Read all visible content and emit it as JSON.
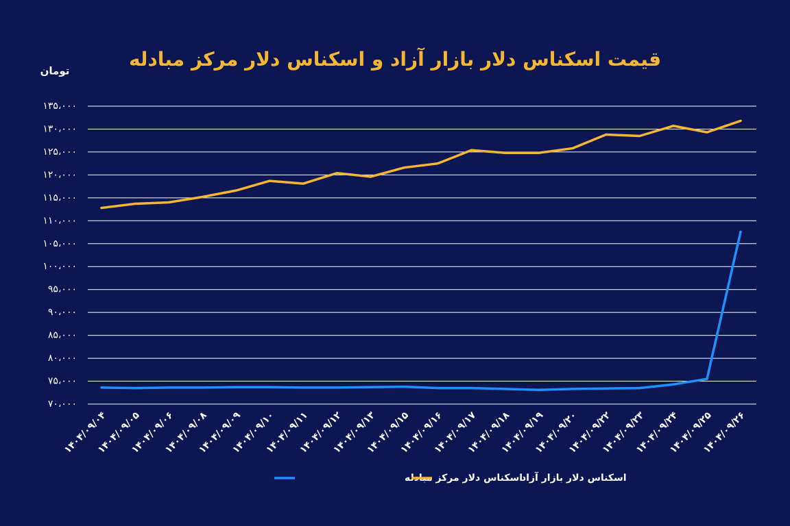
{
  "chart_data": {
    "type": "line",
    "title": "قیمت اسکناس دلار بازار آزاد و اسکناس دلار مرکز مبادله",
    "y_label": "تومان",
    "categories": [
      "۱۴۰۴/۰۹/۰۴",
      "۱۴۰۴/۰۹/۰۵",
      "۱۴۰۴/۰۹/۰۶",
      "۱۴۰۴/۰۹/۰۸",
      "۱۴۰۴/۰۹/۰۹",
      "۱۴۰۴/۰۹/۱۰",
      "۱۴۰۴/۰۹/۱۱",
      "۱۴۰۴/۰۹/۱۲",
      "۱۴۰۴/۰۹/۱۳",
      "۱۴۰۴/۰۹/۱۵",
      "۱۴۰۴/۰۹/۱۶",
      "۱۴۰۴/۰۹/۱۷",
      "۱۴۰۴/۰۹/۱۸",
      "۱۴۰۴/۰۹/۱۹",
      "۱۴۰۴/۰۹/۲۰",
      "۱۴۰۴/۰۹/۲۲",
      "۱۴۰۴/۰۹/۲۳",
      "۱۴۰۴/۰۹/۲۴",
      "۱۴۰۴/۰۹/۲۵",
      "۱۴۰۴/۰۹/۲۶"
    ],
    "series": [
      {
        "name": "اسکناس دلار مرکز مبادله",
        "color": "#1e90ff",
        "values": [
          73600,
          73500,
          73600,
          73600,
          73700,
          73700,
          73600,
          73600,
          73700,
          73800,
          73500,
          73500,
          73300,
          73100,
          73300,
          73400,
          73500,
          74300,
          75500,
          107600
        ]
      },
      {
        "name": "اسکناس دلار بازار آزاد",
        "color": "#f5b731",
        "values": [
          112800,
          113700,
          114000,
          115200,
          116600,
          118700,
          118100,
          120400,
          119600,
          121600,
          122500,
          125400,
          124800,
          124800,
          125800,
          128800,
          128500,
          130700,
          129300,
          131800
        ]
      }
    ],
    "ylim": [
      70000,
      135000
    ],
    "yticks": [
      {
        "value": 70000,
        "label": "۷۰،۰۰۰"
      },
      {
        "value": 75000,
        "label": "۷۵،۰۰۰"
      },
      {
        "value": 80000,
        "label": "۸۰،۰۰۰"
      },
      {
        "value": 85000,
        "label": "۸۵،۰۰۰"
      },
      {
        "value": 90000,
        "label": "۹۰،۰۰۰"
      },
      {
        "value": 95000,
        "label": "۹۵،۰۰۰"
      },
      {
        "value": 100000,
        "label": "۱۰۰،۰۰۰"
      },
      {
        "value": 105000,
        "label": "۱۰۵،۰۰۰"
      },
      {
        "value": 110000,
        "label": "۱۱۰،۰۰۰"
      },
      {
        "value": 115000,
        "label": "۱۱۵،۰۰۰"
      },
      {
        "value": 120000,
        "label": "۱۲۰،۰۰۰"
      },
      {
        "value": 125000,
        "label": "۱۲۵،۰۰۰"
      },
      {
        "value": 130000,
        "label": "۱۳۰،۰۰۰"
      },
      {
        "value": 135000,
        "label": "۱۳۵،۰۰۰"
      }
    ],
    "grid": true,
    "legend": "bottom"
  }
}
